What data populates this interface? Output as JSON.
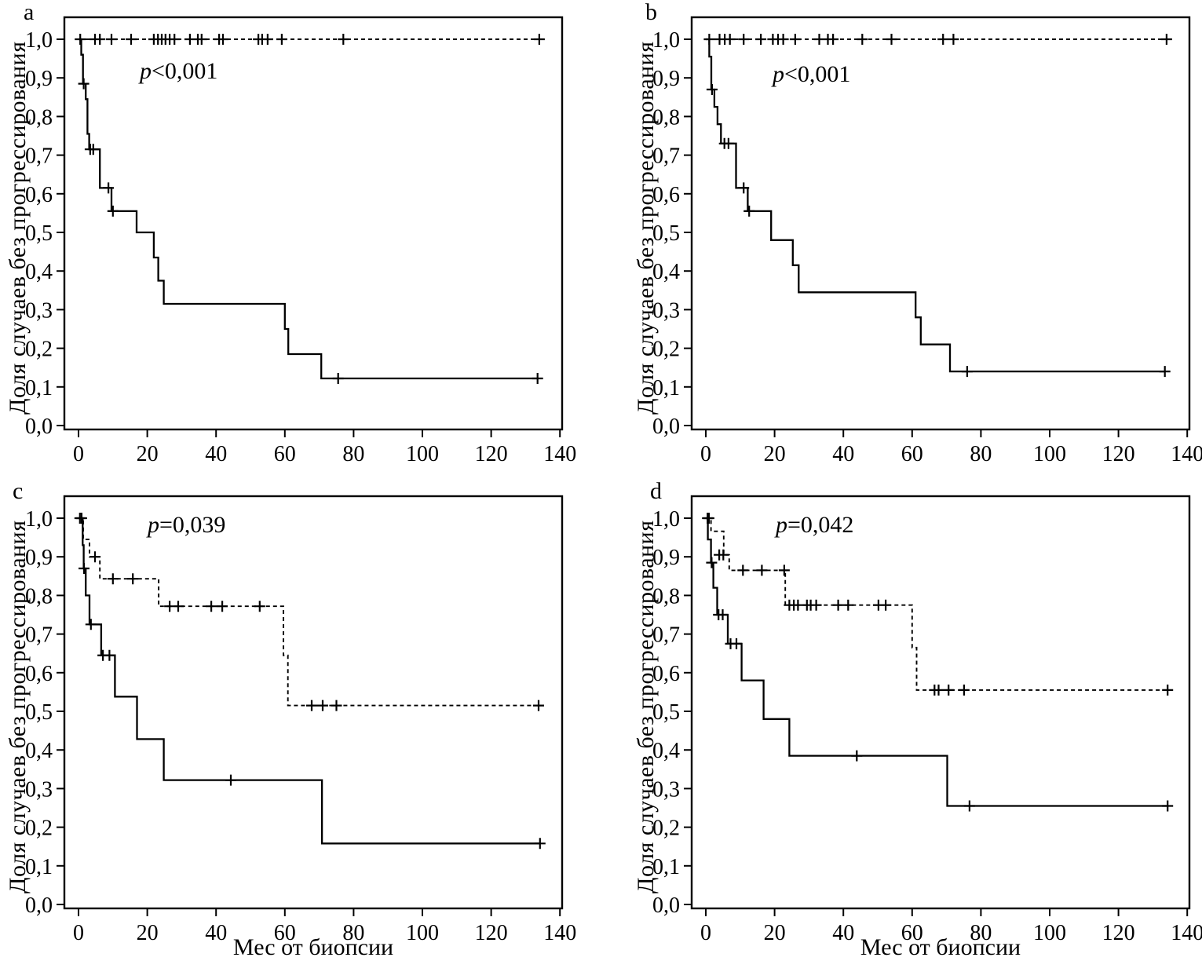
{
  "figure": {
    "x_axis_label": "Мес от биопсии",
    "y_axis_label": "Доля случаев без прогрессирования",
    "x_tick_labels": [
      "0",
      "20",
      "40",
      "60",
      "80",
      "100",
      "120",
      "140"
    ],
    "x_tick_values": [
      0,
      20,
      40,
      60,
      80,
      100,
      120,
      140
    ],
    "y_tick_labels": [
      "1,0",
      "0,9",
      "0,8",
      "0,7",
      "0,6",
      "0,5",
      "0,4",
      "0,3",
      "0,2",
      "0,1",
      "0,0"
    ],
    "y_tick_values": [
      1.0,
      0.9,
      0.8,
      0.7,
      0.6,
      0.5,
      0.4,
      0.3,
      0.2,
      0.1,
      0.0
    ],
    "line_color": "#000000",
    "background_color": "#ffffff"
  },
  "chart_data": [
    {
      "panel": "a",
      "type": "line",
      "step": true,
      "p_prefix": "p",
      "p_rest": "<0,001",
      "xlabel": "",
      "ylabel": "Доля случаев без прогрессирования",
      "xlim": [
        0,
        140
      ],
      "ylim": [
        0.0,
        1.05
      ],
      "grid": false,
      "series": [
        {
          "name": "group-censored-dashed",
          "line_style": "dashed",
          "steps": [
            [
              0,
              1.0
            ],
            [
              134,
              1.0
            ]
          ],
          "censors": [
            [
              0.5,
              1.0
            ],
            [
              4.8,
              1.0
            ],
            [
              6.2,
              1.0
            ],
            [
              9.6,
              1.0
            ],
            [
              15.3,
              1.0
            ],
            [
              21.9,
              1.0
            ],
            [
              23.1,
              1.0
            ],
            [
              24.2,
              1.0
            ],
            [
              25.3,
              1.0
            ],
            [
              26.5,
              1.0
            ],
            [
              27.9,
              1.0
            ],
            [
              32.4,
              1.0
            ],
            [
              34.7,
              1.0
            ],
            [
              35.8,
              1.0
            ],
            [
              40.9,
              1.0
            ],
            [
              42.0,
              1.0
            ],
            [
              52.3,
              1.0
            ],
            [
              53.4,
              1.0
            ],
            [
              55.0,
              1.0
            ],
            [
              59.1,
              1.0
            ],
            [
              77,
              1.0
            ],
            [
              134,
              1.0
            ]
          ]
        },
        {
          "name": "group-events-solid",
          "line_style": "solid",
          "steps": [
            [
              0,
              1.0
            ],
            [
              0.8,
              0.96
            ],
            [
              1.3,
              0.885
            ],
            [
              2.1,
              0.845
            ],
            [
              2.6,
              0.755
            ],
            [
              3.1,
              0.715
            ],
            [
              6.2,
              0.615
            ],
            [
              9.6,
              0.555
            ],
            [
              16.9,
              0.5
            ],
            [
              21.9,
              0.435
            ],
            [
              23.2,
              0.375
            ],
            [
              24.8,
              0.315
            ],
            [
              60,
              0.25
            ],
            [
              61,
              0.185
            ],
            [
              70.6,
              0.122
            ],
            [
              133.5,
              0.122
            ]
          ],
          "censors": [
            [
              1.5,
              0.885
            ],
            [
              3.4,
              0.715
            ],
            [
              4.3,
              0.715
            ],
            [
              8.7,
              0.615
            ],
            [
              10,
              0.555
            ],
            [
              75.5,
              0.122
            ],
            [
              133.5,
              0.122
            ]
          ]
        }
      ]
    },
    {
      "panel": "b",
      "type": "line",
      "step": true,
      "p_prefix": "p",
      "p_rest": "<0,001",
      "xlabel": "",
      "ylabel": "Доля случаев без прогрессирования",
      "xlim": [
        0,
        140
      ],
      "ylim": [
        0.0,
        1.05
      ],
      "grid": false,
      "series": [
        {
          "name": "group-censored-dashed",
          "line_style": "dashed",
          "steps": [
            [
              0,
              1.0
            ],
            [
              134,
              1.0
            ]
          ],
          "censors": [
            [
              1,
              1.0
            ],
            [
              4,
              1.0
            ],
            [
              5.5,
              1.0
            ],
            [
              7,
              1.0
            ],
            [
              11,
              1.0
            ],
            [
              16,
              1.0
            ],
            [
              19.5,
              1.0
            ],
            [
              21,
              1.0
            ],
            [
              22.5,
              1.0
            ],
            [
              26,
              1.0
            ],
            [
              33,
              1.0
            ],
            [
              35.5,
              1.0
            ],
            [
              37,
              1.0
            ],
            [
              45.5,
              1.0
            ],
            [
              54,
              1.0
            ],
            [
              69,
              1.0
            ],
            [
              72,
              1.0
            ],
            [
              134,
              1.0
            ]
          ]
        },
        {
          "name": "group-events-solid",
          "line_style": "solid",
          "steps": [
            [
              0,
              1.0
            ],
            [
              1,
              0.955
            ],
            [
              1.6,
              0.87
            ],
            [
              2.5,
              0.825
            ],
            [
              3.4,
              0.78
            ],
            [
              4.4,
              0.73
            ],
            [
              8.8,
              0.615
            ],
            [
              12.2,
              0.555
            ],
            [
              19,
              0.48
            ],
            [
              25.3,
              0.415
            ],
            [
              27,
              0.345
            ],
            [
              61,
              0.28
            ],
            [
              62.5,
              0.21
            ],
            [
              71,
              0.14
            ],
            [
              133.5,
              0.14
            ]
          ],
          "censors": [
            [
              1.8,
              0.87
            ],
            [
              5.4,
              0.73
            ],
            [
              6.6,
              0.73
            ],
            [
              11,
              0.615
            ],
            [
              12.6,
              0.555
            ],
            [
              76,
              0.14
            ],
            [
              133.5,
              0.14
            ]
          ]
        }
      ]
    },
    {
      "panel": "c",
      "type": "line",
      "step": true,
      "p_prefix": "p",
      "p_rest": "=0,039",
      "xlabel": "Мес от биопсии",
      "ylabel": "Доля случаев без прогрессирования",
      "xlim": [
        0,
        140
      ],
      "ylim": [
        0.0,
        1.05
      ],
      "grid": false,
      "series": [
        {
          "name": "group-censored-dashed",
          "line_style": "dashed",
          "steps": [
            [
              0,
              1.0
            ],
            [
              1.4,
              0.945
            ],
            [
              3.2,
              0.9
            ],
            [
              6.2,
              0.843
            ],
            [
              23.3,
              0.772
            ],
            [
              59.6,
              0.645
            ],
            [
              60.9,
              0.515
            ],
            [
              133.8,
              0.515
            ]
          ],
          "censors": [
            [
              0.9,
              1.0
            ],
            [
              4.8,
              0.9
            ],
            [
              10,
              0.843
            ],
            [
              15.8,
              0.843
            ],
            [
              26.5,
              0.772
            ],
            [
              29,
              0.772
            ],
            [
              38.6,
              0.772
            ],
            [
              41.8,
              0.772
            ],
            [
              52.7,
              0.772
            ],
            [
              67.8,
              0.515
            ],
            [
              71,
              0.515
            ],
            [
              75,
              0.515
            ],
            [
              133.8,
              0.515
            ]
          ]
        },
        {
          "name": "group-events-solid",
          "line_style": "solid",
          "steps": [
            [
              0,
              1.0
            ],
            [
              1.2,
              0.93
            ],
            [
              1.5,
              0.87
            ],
            [
              2.1,
              0.8
            ],
            [
              3.2,
              0.725
            ],
            [
              6.6,
              0.645
            ],
            [
              10.6,
              0.538
            ],
            [
              17,
              0.428
            ],
            [
              24.8,
              0.322
            ],
            [
              70.8,
              0.158
            ],
            [
              134.2,
              0.158
            ]
          ],
          "censors": [
            [
              0.4,
              1.0
            ],
            [
              1.6,
              0.87
            ],
            [
              3.6,
              0.725
            ],
            [
              7.1,
              0.645
            ],
            [
              9,
              0.645
            ],
            [
              44.3,
              0.322
            ],
            [
              134.2,
              0.158
            ]
          ]
        }
      ]
    },
    {
      "panel": "d",
      "type": "line",
      "step": true,
      "p_prefix": "p",
      "p_rest": "=0,042",
      "xlabel": "Мес от биопсии",
      "ylabel": "Доля случаев без прогрессирования",
      "xlim": [
        0,
        140
      ],
      "ylim": [
        0.0,
        1.05
      ],
      "grid": false,
      "series": [
        {
          "name": "group-censored-dashed",
          "line_style": "dashed",
          "steps": [
            [
              0,
              1.0
            ],
            [
              1.5,
              0.966
            ],
            [
              5.2,
              0.905
            ],
            [
              6.8,
              0.865
            ],
            [
              23.1,
              0.775
            ],
            [
              60,
              0.665
            ],
            [
              61.3,
              0.555
            ],
            [
              134.3,
              0.555
            ]
          ],
          "censors": [
            [
              0.9,
              1.0
            ],
            [
              3.9,
              0.905
            ],
            [
              5.1,
              0.905
            ],
            [
              10.8,
              0.865
            ],
            [
              16.3,
              0.865
            ],
            [
              22.8,
              0.865
            ],
            [
              24.3,
              0.775
            ],
            [
              25.6,
              0.775
            ],
            [
              26.8,
              0.775
            ],
            [
              29.4,
              0.775
            ],
            [
              30.5,
              0.775
            ],
            [
              32.1,
              0.775
            ],
            [
              38.5,
              0.775
            ],
            [
              41.4,
              0.775
            ],
            [
              50.2,
              0.775
            ],
            [
              52.3,
              0.775
            ],
            [
              66.5,
              0.555
            ],
            [
              67.7,
              0.555
            ],
            [
              70.6,
              0.555
            ],
            [
              75.1,
              0.555
            ],
            [
              134.3,
              0.555
            ]
          ]
        },
        {
          "name": "group-events-solid",
          "line_style": "solid",
          "steps": [
            [
              0,
              1.0
            ],
            [
              0.6,
              0.945
            ],
            [
              1.5,
              0.885
            ],
            [
              2.2,
              0.82
            ],
            [
              3.3,
              0.75
            ],
            [
              6.4,
              0.675
            ],
            [
              10.4,
              0.58
            ],
            [
              16.8,
              0.48
            ],
            [
              24.3,
              0.385
            ],
            [
              70.2,
              0.255
            ],
            [
              134.3,
              0.255
            ]
          ],
          "censors": [
            [
              0.5,
              1.0
            ],
            [
              1.7,
              0.885
            ],
            [
              3.7,
              0.75
            ],
            [
              4.9,
              0.75
            ],
            [
              7.2,
              0.675
            ],
            [
              8.9,
              0.675
            ],
            [
              43.9,
              0.385
            ],
            [
              76.7,
              0.255
            ],
            [
              134.3,
              0.255
            ]
          ]
        }
      ]
    }
  ]
}
